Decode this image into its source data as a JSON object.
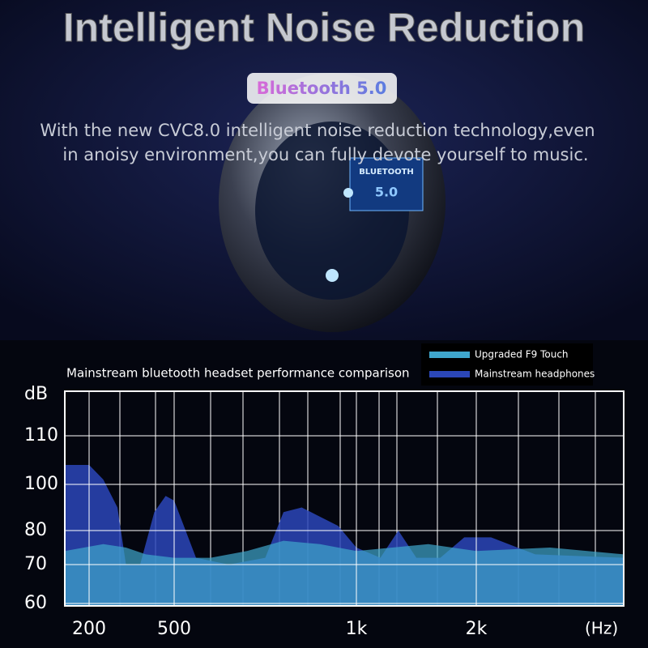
{
  "banner": {
    "title": "Intelligent Noise Reduction",
    "badge": "Bluetooth 5.0",
    "description": [
      "With the new CVC8.0 intelligent noise reduction technology,even",
      "in anoisy environment,you can fully devote yourself to music."
    ],
    "chip_label": "BLUETOOTH",
    "chip_version": "5.0"
  },
  "chart_data": {
    "type": "area",
    "title": "Mainstream bluetooth headset performance comparison",
    "y_label": "dB",
    "x_label": "(Hz)",
    "xlim": [
      150,
      3000
    ],
    "xticks": [
      200,
      500,
      {
        "value": 1000,
        "label": "1k"
      },
      {
        "value": 2000,
        "label": "2k"
      }
    ],
    "ylim": [
      60,
      118
    ],
    "yticks": [
      60,
      70,
      80,
      100,
      110
    ],
    "grid": true,
    "legend": "top-right",
    "series": [
      {
        "name": "Mainstream headphones",
        "color": "#2b47b8",
        "x": [
          150,
          200,
          250,
          300,
          330,
          380,
          430,
          470,
          500,
          560,
          650,
          750,
          800,
          850,
          950,
          1000,
          1200,
          1350,
          1500,
          1700,
          1900,
          2100,
          2400,
          3000
        ],
        "values": [
          104,
          104,
          101,
          90,
          70,
          70,
          88,
          95,
          93,
          72,
          70,
          72,
          88,
          90,
          82,
          75,
          72,
          80,
          72,
          72,
          78,
          78,
          73,
          72
        ]
      },
      {
        "name": "Upgraded F9 Touch",
        "color": "#3fa6cc",
        "x": [
          150,
          250,
          330,
          400,
          500,
          600,
          700,
          800,
          900,
          1000,
          1300,
          1600,
          2000,
          2500,
          3000
        ],
        "values": [
          74,
          76,
          75,
          73,
          72,
          72,
          74,
          77,
          76,
          74,
          75,
          76,
          74,
          75,
          73
        ]
      }
    ]
  }
}
